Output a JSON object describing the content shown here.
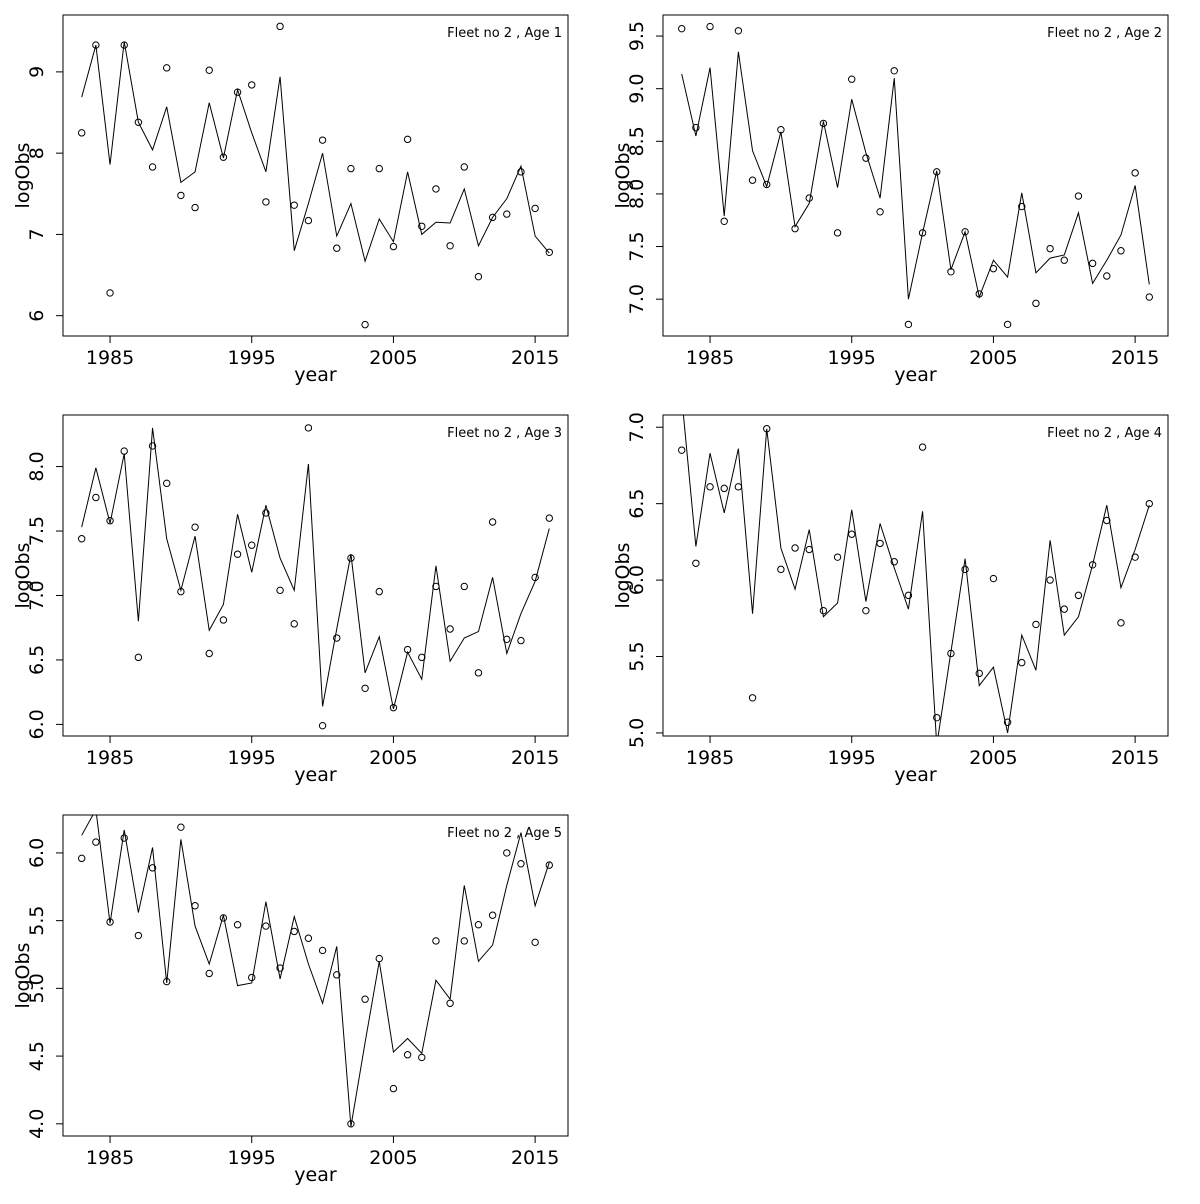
{
  "chart_data": [
    {
      "type": "line",
      "title": "Fleet no 2 , Age 1",
      "xlabel": "year",
      "ylabel": "logObs",
      "x": [
        1983,
        1984,
        1985,
        1986,
        1987,
        1988,
        1989,
        1990,
        1991,
        1992,
        1993,
        1994,
        1995,
        1996,
        1997,
        1998,
        1999,
        2000,
        2001,
        2002,
        2003,
        2004,
        2005,
        2006,
        2007,
        2008,
        2009,
        2010,
        2011,
        2012,
        2013,
        2014,
        2015,
        2016
      ],
      "xlim": [
        1981.68,
        2017.32
      ],
      "xticks": [
        1985,
        1995,
        2005,
        2015
      ],
      "ylim": [
        5.75,
        9.7
      ],
      "yticks": [
        6,
        7,
        8,
        9
      ],
      "series": [
        {
          "style": "points",
          "color": "#000000",
          "values": [
            8.25,
            9.33,
            6.28,
            9.33,
            8.38,
            7.83,
            9.05,
            7.48,
            7.33,
            9.02,
            7.95,
            8.75,
            8.84,
            7.4,
            9.56,
            7.36,
            7.17,
            8.16,
            6.83,
            7.81,
            5.89,
            7.81,
            6.85,
            8.17,
            7.1,
            7.56,
            6.86,
            7.83,
            6.48,
            7.21,
            7.25,
            7.77,
            7.32,
            6.78
          ]
        },
        {
          "style": "line",
          "color": "#000000",
          "values": [
            8.69,
            9.33,
            7.86,
            9.37,
            8.38,
            8.04,
            8.57,
            7.64,
            7.77,
            8.62,
            7.94,
            8.78,
            8.25,
            7.77,
            8.94,
            6.8,
            7.38,
            8.0,
            6.98,
            7.38,
            6.67,
            7.19,
            6.91,
            7.77,
            7.0,
            7.15,
            7.14,
            7.56,
            6.86,
            7.21,
            7.44,
            7.84,
            6.98,
            6.77
          ]
        }
      ]
    },
    {
      "type": "line",
      "title": "Fleet no 2 , Age 2",
      "xlabel": "year",
      "ylabel": "logObs",
      "x": [
        1983,
        1984,
        1985,
        1986,
        1987,
        1988,
        1989,
        1990,
        1991,
        1992,
        1993,
        1994,
        1995,
        1996,
        1997,
        1998,
        1999,
        2000,
        2001,
        2002,
        2003,
        2004,
        2005,
        2006,
        2007,
        2008,
        2009,
        2010,
        2011,
        2012,
        2013,
        2014,
        2015,
        2016
      ],
      "xlim": [
        1981.68,
        2017.32
      ],
      "xticks": [
        1985,
        1995,
        2005,
        2015
      ],
      "ylim": [
        6.65,
        9.7
      ],
      "yticks": [
        {
          "value": 7,
          "label": "7.0"
        },
        7.5,
        {
          "value": 8,
          "label": "8.0"
        },
        8.5,
        {
          "value": 9,
          "label": "9.0"
        },
        9.5
      ],
      "series": [
        {
          "style": "points",
          "color": "#000000",
          "values": [
            9.57,
            8.63,
            9.59,
            7.74,
            9.55,
            8.13,
            8.09,
            8.61,
            7.67,
            7.96,
            8.67,
            7.63,
            9.09,
            8.34,
            7.83,
            9.17,
            6.76,
            7.63,
            8.21,
            7.26,
            7.64,
            7.05,
            7.29,
            6.76,
            7.88,
            6.96,
            7.48,
            7.37,
            7.98,
            7.34,
            7.22,
            7.46,
            8.2,
            7.02
          ]
        },
        {
          "style": "line",
          "color": "#000000",
          "values": [
            9.14,
            8.55,
            9.2,
            7.79,
            9.35,
            8.41,
            8.07,
            8.59,
            7.69,
            7.91,
            8.69,
            8.06,
            8.9,
            8.39,
            7.96,
            9.1,
            7.0,
            7.63,
            8.22,
            7.28,
            7.64,
            7.02,
            7.37,
            7.21,
            8.01,
            7.25,
            7.39,
            7.42,
            7.82,
            7.15,
            7.37,
            7.61,
            8.08,
            7.14
          ]
        }
      ]
    },
    {
      "type": "line",
      "title": "Fleet no 2 , Age 3",
      "xlabel": "year",
      "ylabel": "logObs",
      "x": [
        1983,
        1984,
        1985,
        1986,
        1987,
        1988,
        1989,
        1990,
        1991,
        1992,
        1993,
        1994,
        1995,
        1996,
        1997,
        1998,
        1999,
        2000,
        2001,
        2002,
        2003,
        2004,
        2005,
        2006,
        2007,
        2008,
        2009,
        2010,
        2011,
        2012,
        2013,
        2014,
        2015,
        2016
      ],
      "xlim": [
        1981.68,
        2017.32
      ],
      "xticks": [
        1985,
        1995,
        2005,
        2015
      ],
      "ylim": [
        5.91,
        8.4
      ],
      "yticks": [
        {
          "value": 6,
          "label": "6.0"
        },
        6.5,
        {
          "value": 7,
          "label": "7.0"
        },
        7.5,
        {
          "value": 8,
          "label": "8.0"
        }
      ],
      "series": [
        {
          "style": "points",
          "color": "#000000",
          "values": [
            7.44,
            7.76,
            7.58,
            8.12,
            6.52,
            8.16,
            7.87,
            7.03,
            7.53,
            6.55,
            6.81,
            7.32,
            7.39,
            7.64,
            7.04,
            6.78,
            8.3,
            5.99,
            6.67,
            7.29,
            6.28,
            7.03,
            6.13,
            6.58,
            6.52,
            7.07,
            6.74,
            7.07,
            6.4,
            7.57,
            6.66,
            6.65,
            7.14,
            7.6
          ]
        },
        {
          "style": "line",
          "color": "#000000",
          "values": [
            7.53,
            7.99,
            7.56,
            8.1,
            6.8,
            8.3,
            7.44,
            7.04,
            7.46,
            6.73,
            6.93,
            7.63,
            7.18,
            7.7,
            7.29,
            7.04,
            8.02,
            6.14,
            6.74,
            7.32,
            6.4,
            6.68,
            6.12,
            6.56,
            6.35,
            7.23,
            6.49,
            6.67,
            6.72,
            7.14,
            6.55,
            6.86,
            7.11,
            7.52
          ]
        }
      ]
    },
    {
      "type": "line",
      "title": "Fleet no 2 , Age 4",
      "xlabel": "year",
      "ylabel": "logObs",
      "x": [
        1983,
        1984,
        1985,
        1986,
        1987,
        1988,
        1989,
        1990,
        1991,
        1992,
        1993,
        1994,
        1995,
        1996,
        1997,
        1998,
        1999,
        2000,
        2001,
        2002,
        2003,
        2004,
        2005,
        2006,
        2007,
        2008,
        2009,
        2010,
        2011,
        2012,
        2013,
        2014,
        2015,
        2016
      ],
      "xlim": [
        1981.68,
        2017.32
      ],
      "xticks": [
        1985,
        1995,
        2005,
        2015
      ],
      "ylim": [
        4.98,
        7.08
      ],
      "yticks": [
        {
          "value": 5,
          "label": "5.0"
        },
        5.5,
        {
          "value": 6,
          "label": "6.0"
        },
        6.5,
        {
          "value": 7,
          "label": "7.0"
        }
      ],
      "series": [
        {
          "style": "points",
          "color": "#000000",
          "values": [
            6.85,
            6.11,
            6.61,
            6.6,
            6.61,
            5.23,
            6.99,
            6.07,
            6.21,
            6.2,
            5.8,
            6.15,
            6.3,
            5.8,
            6.24,
            6.12,
            5.9,
            6.87,
            5.1,
            5.52,
            6.07,
            5.39,
            6.01,
            5.07,
            5.46,
            5.71,
            6.0,
            5.81,
            5.9,
            6.1,
            6.39,
            5.72,
            6.15,
            6.5
          ]
        },
        {
          "style": "line",
          "color": "#000000",
          "values": [
            7.2,
            6.22,
            6.83,
            6.44,
            6.86,
            5.78,
            6.99,
            6.21,
            5.94,
            6.33,
            5.76,
            5.85,
            6.46,
            5.86,
            6.37,
            6.08,
            5.81,
            6.45,
            4.92,
            5.53,
            6.14,
            5.31,
            5.43,
            5.0,
            5.64,
            5.41,
            6.26,
            5.64,
            5.76,
            6.1,
            6.49,
            5.95,
            6.2,
            6.49
          ]
        }
      ]
    },
    {
      "type": "line",
      "title": "Fleet no 2 , Age 5",
      "xlabel": "year",
      "ylabel": "logObs",
      "x": [
        1983,
        1984,
        1985,
        1986,
        1987,
        1988,
        1989,
        1990,
        1991,
        1992,
        1993,
        1994,
        1995,
        1996,
        1997,
        1998,
        1999,
        2000,
        2001,
        2002,
        2003,
        2004,
        2005,
        2006,
        2007,
        2008,
        2009,
        2010,
        2011,
        2012,
        2013,
        2014,
        2015,
        2016
      ],
      "xlim": [
        1981.68,
        2017.32
      ],
      "xticks": [
        1985,
        1995,
        2005,
        2015
      ],
      "ylim": [
        3.91,
        6.28
      ],
      "yticks": [
        {
          "value": 4,
          "label": "4.0"
        },
        4.5,
        {
          "value": 5,
          "label": "5.0"
        },
        5.5,
        {
          "value": 6,
          "label": "6.0"
        }
      ],
      "series": [
        {
          "style": "points",
          "color": "#000000",
          "values": [
            5.96,
            6.08,
            5.49,
            6.11,
            5.39,
            5.89,
            5.05,
            6.19,
            5.61,
            5.11,
            5.52,
            5.47,
            5.08,
            5.46,
            5.15,
            5.42,
            5.37,
            5.28,
            5.1,
            4.0,
            4.92,
            5.22,
            4.26,
            4.51,
            4.49,
            5.35,
            4.89,
            5.35,
            5.47,
            5.54,
            6.0,
            5.92,
            5.34,
            5.91
          ]
        },
        {
          "style": "line",
          "color": "#000000",
          "values": [
            6.13,
            6.32,
            5.48,
            6.17,
            5.56,
            6.04,
            5.04,
            6.1,
            5.46,
            5.18,
            5.54,
            5.02,
            5.04,
            5.64,
            5.07,
            5.53,
            5.18,
            4.89,
            5.31,
            3.98,
            4.6,
            5.2,
            4.53,
            4.63,
            4.52,
            5.06,
            4.92,
            5.76,
            5.2,
            5.32,
            5.76,
            6.15,
            5.61,
            5.93
          ]
        }
      ]
    }
  ]
}
